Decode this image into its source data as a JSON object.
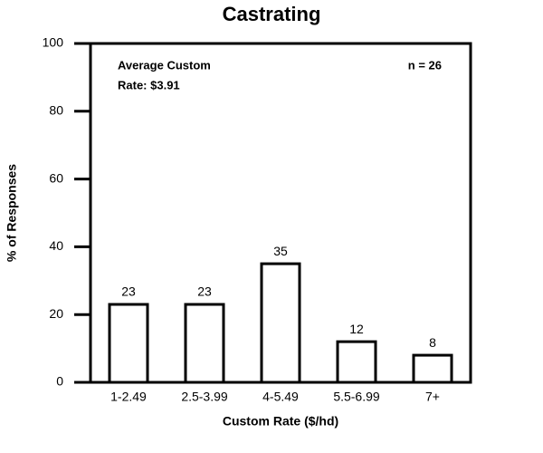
{
  "chart_data": {
    "type": "bar",
    "title": "Castrating",
    "xlabel": "Custom Rate ($/hd)",
    "ylabel": "% of Responses",
    "categories": [
      "1-2.49",
      "2.5-3.99",
      "4-5.49",
      "5.5-6.99",
      "7+"
    ],
    "values": [
      23,
      23,
      35,
      12,
      8
    ],
    "color": "#ffffff",
    "ylim": [
      0,
      100
    ],
    "yticks": [
      0,
      20,
      40,
      60,
      80,
      100
    ],
    "grid": false,
    "annotations": [
      "Average Custom",
      "Rate: $3.91",
      "n = 26"
    ]
  }
}
